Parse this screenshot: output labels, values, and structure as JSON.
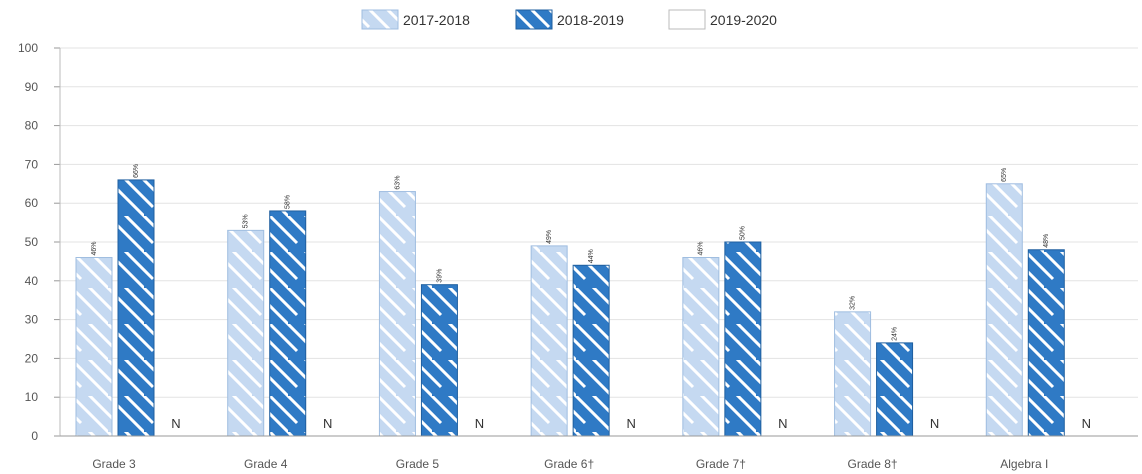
{
  "chart_data": {
    "type": "bar",
    "categories": [
      "Grade 3",
      "Grade 4",
      "Grade 5",
      "Grade 6†",
      "Grade 7†",
      "Grade 8†",
      "Algebra I"
    ],
    "series": [
      {
        "name": "2017-2018",
        "values": [
          46,
          53,
          63,
          49,
          46,
          32,
          65
        ],
        "labels": [
          "46%",
          "53%",
          "63%",
          "49%",
          "46%",
          "32%",
          "65%"
        ],
        "color": "#c5d9f1",
        "stroke": "#9fbde0",
        "pattern": "light-hatch"
      },
      {
        "name": "2018-2019",
        "values": [
          66,
          58,
          39,
          44,
          50,
          24,
          48
        ],
        "labels": [
          "66%",
          "58%",
          "39%",
          "44%",
          "50%",
          "24%",
          "48%"
        ],
        "color": "#2f7ac5",
        "stroke": "#1f5f9f",
        "pattern": "dark-hatch"
      },
      {
        "name": "2019-2020",
        "values": [
          null,
          null,
          null,
          null,
          null,
          null,
          null
        ],
        "labels": [
          "N",
          "N",
          "N",
          "N",
          "N",
          "N",
          "N"
        ],
        "color": "#ffffff",
        "stroke": "#bbbbbb",
        "pattern": "none"
      }
    ],
    "ylim": [
      0,
      100
    ],
    "yticks": [
      "0",
      "10",
      "20",
      "30",
      "40",
      "50",
      "60",
      "70",
      "80",
      "90",
      "100"
    ],
    "legend_position": "top-center",
    "grid": true,
    "title": "",
    "xlabel": "",
    "ylabel": ""
  }
}
